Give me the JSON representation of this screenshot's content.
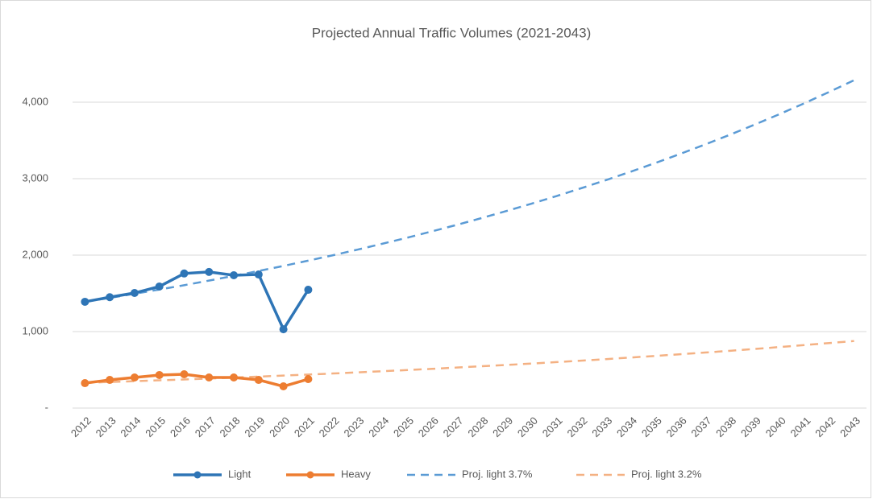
{
  "chart_data": {
    "type": "line",
    "title": "Projected Annual Traffic Volumes (2021-2043)",
    "categories": [
      "2012",
      "2013",
      "2014",
      "2015",
      "2016",
      "2017",
      "2018",
      "2019",
      "2020",
      "2021",
      "2022",
      "2023",
      "2024",
      "2025",
      "2026",
      "2027",
      "2028",
      "2029",
      "2030",
      "2031",
      "2032",
      "2033",
      "2034",
      "2035",
      "2036",
      "2037",
      "2038",
      "2039",
      "2040",
      "2041",
      "2042",
      "2043"
    ],
    "ylim": [
      0,
      4300
    ],
    "yticks": [
      {
        "value": 0,
        "label": "-"
      },
      {
        "value": 1000,
        "label": "1,000"
      },
      {
        "value": 2000,
        "label": "2,000"
      },
      {
        "value": 3000,
        "label": "3,000"
      },
      {
        "value": 4000,
        "label": "4,000"
      }
    ],
    "grid": true,
    "legend": "bottom",
    "series": [
      {
        "name": "Light",
        "color": "#2e75b6",
        "dashed": false,
        "markers": true,
        "values": [
          1390,
          1450,
          1505,
          1590,
          1760,
          1780,
          1737,
          1747,
          1030,
          1547,
          null,
          null,
          null,
          null,
          null,
          null,
          null,
          null,
          null,
          null,
          null,
          null,
          null,
          null,
          null,
          null,
          null,
          null,
          null,
          null,
          null,
          null
        ]
      },
      {
        "name": "Heavy",
        "color": "#ed7d31",
        "dashed": false,
        "markers": true,
        "values": [
          326,
          368,
          400,
          432,
          442,
          400,
          400,
          368,
          284,
          379,
          null,
          null,
          null,
          null,
          null,
          null,
          null,
          null,
          null,
          null,
          null,
          null,
          null,
          null,
          null,
          null,
          null,
          null,
          null,
          null,
          null,
          null
        ]
      },
      {
        "name": "Proj. light 3.7%",
        "color": "#5b9bd5",
        "dashed": true,
        "markers": false,
        "values": [
          1390,
          1441,
          1495,
          1550,
          1607,
          1667,
          1729,
          1793,
          1859,
          1928,
          1999,
          2073,
          2150,
          2229,
          2312,
          2397,
          2486,
          2578,
          2673,
          2772,
          2875,
          2981,
          3092,
          3206,
          3325,
          3448,
          3575,
          3708,
          3845,
          3987,
          4135,
          4288
        ]
      },
      {
        "name": "Proj. light 3.2%",
        "color": "#f4b183",
        "dashed": true,
        "markers": false,
        "values": [
          330,
          341,
          351,
          363,
          374,
          386,
          399,
          411,
          425,
          438,
          452,
          467,
          482,
          497,
          513,
          530,
          547,
          564,
          582,
          601,
          620,
          640,
          661,
          682,
          704,
          726,
          749,
          773,
          798,
          824,
          850,
          877
        ]
      }
    ]
  }
}
